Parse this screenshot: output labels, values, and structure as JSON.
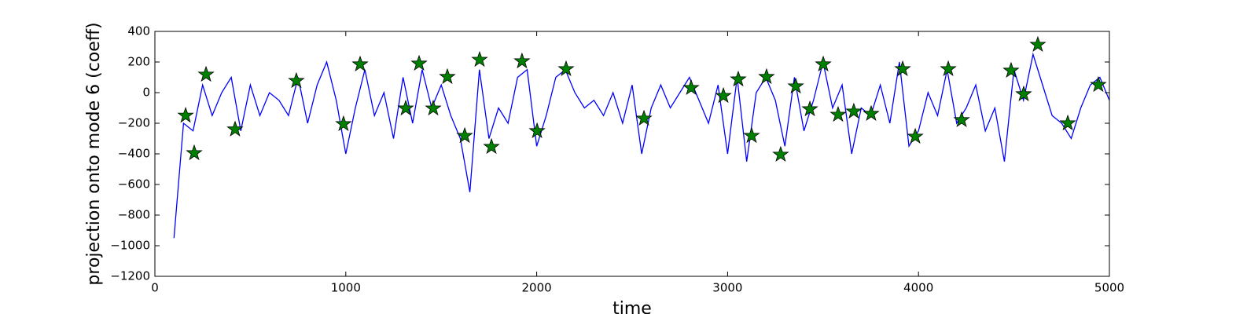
{
  "chart_data": {
    "type": "line",
    "xlabel": "time",
    "ylabel": "projection onto mode 6 (coeff)",
    "xlim": [
      0,
      5000
    ],
    "xticks": [
      0,
      1000,
      2000,
      3000,
      4000,
      5000
    ],
    "ylim": [
      -1200,
      400
    ],
    "yticks": [
      {
        "value": -1200,
        "label": "−1200"
      },
      {
        "value": -1000,
        "label": "−1000"
      },
      {
        "value": -800,
        "label": "−800"
      },
      {
        "value": -600,
        "label": "−600"
      },
      {
        "value": -400,
        "label": "−400"
      },
      {
        "value": -200,
        "label": "−200"
      },
      0,
      200,
      400
    ],
    "grid": false,
    "series": [
      {
        "type": "line",
        "color": "#0000ff",
        "x": [
          100,
          150,
          200,
          250,
          300,
          350,
          400,
          450,
          500,
          550,
          600,
          650,
          700,
          750,
          800,
          850,
          900,
          950,
          1000,
          1050,
          1100,
          1150,
          1200,
          1250,
          1300,
          1350,
          1400,
          1450,
          1500,
          1550,
          1600,
          1650,
          1700,
          1750,
          1800,
          1850,
          1900,
          1950,
          2000,
          2050,
          2100,
          2150,
          2200,
          2250,
          2300,
          2350,
          2400,
          2450,
          2500,
          2550,
          2600,
          2650,
          2700,
          2750,
          2800,
          2850,
          2900,
          2950,
          3000,
          3050,
          3100,
          3150,
          3200,
          3250,
          3300,
          3350,
          3400,
          3450,
          3500,
          3550,
          3600,
          3650,
          3700,
          3750,
          3800,
          3850,
          3900,
          3950,
          4000,
          4050,
          4100,
          4150,
          4200,
          4250,
          4300,
          4350,
          4400,
          4450,
          4500,
          4550,
          4600,
          4650,
          4700,
          4750,
          4800,
          4850,
          4900,
          4950,
          5000
        ],
        "values": [
          -950,
          -200,
          -250,
          50,
          -150,
          0,
          100,
          -250,
          50,
          -150,
          0,
          -50,
          -150,
          100,
          -200,
          50,
          200,
          -50,
          -400,
          -100,
          150,
          -150,
          0,
          -300,
          100,
          -200,
          150,
          -100,
          50,
          -150,
          -300,
          -650,
          150,
          -300,
          -100,
          -200,
          100,
          150,
          -350,
          -150,
          100,
          150,
          0,
          -100,
          -50,
          -150,
          0,
          -200,
          50,
          -400,
          -100,
          50,
          -100,
          0,
          100,
          -50,
          -200,
          50,
          -400,
          100,
          -450,
          0,
          100,
          -50,
          -350,
          100,
          -250,
          -50,
          200,
          -100,
          50,
          -400,
          -100,
          -150,
          50,
          -200,
          200,
          -350,
          -250,
          0,
          -150,
          150,
          -200,
          -100,
          50,
          -250,
          -100,
          -450,
          150,
          -50,
          250,
          50,
          -150,
          -200,
          -300,
          -100,
          50,
          100,
          -50
        ]
      },
      {
        "type": "scatter",
        "marker": "star",
        "color": "#008000",
        "x": [
          161,
          206,
          268,
          420,
          741,
          988,
          1075,
          1314,
          1384,
          1458,
          1532,
          1623,
          1701,
          1763,
          1923,
          2002,
          2154,
          2562,
          2809,
          2978,
          3056,
          3126,
          3204,
          3278,
          3357,
          3431,
          3501,
          3579,
          3661,
          3752,
          3917,
          3983,
          4156,
          4226,
          4485,
          4551,
          4625,
          4782,
          4942
        ],
        "values": [
          -150,
          -395,
          118,
          -240,
          77,
          -205,
          185,
          -103,
          190,
          -103,
          103,
          -282,
          215,
          -354,
          205,
          -251,
          154,
          -169,
          31,
          -21,
          87,
          -282,
          103,
          -405,
          41,
          -108,
          185,
          -144,
          -123,
          -138,
          154,
          -287,
          154,
          -179,
          144,
          -10,
          313,
          -200,
          51
        ]
      }
    ]
  }
}
